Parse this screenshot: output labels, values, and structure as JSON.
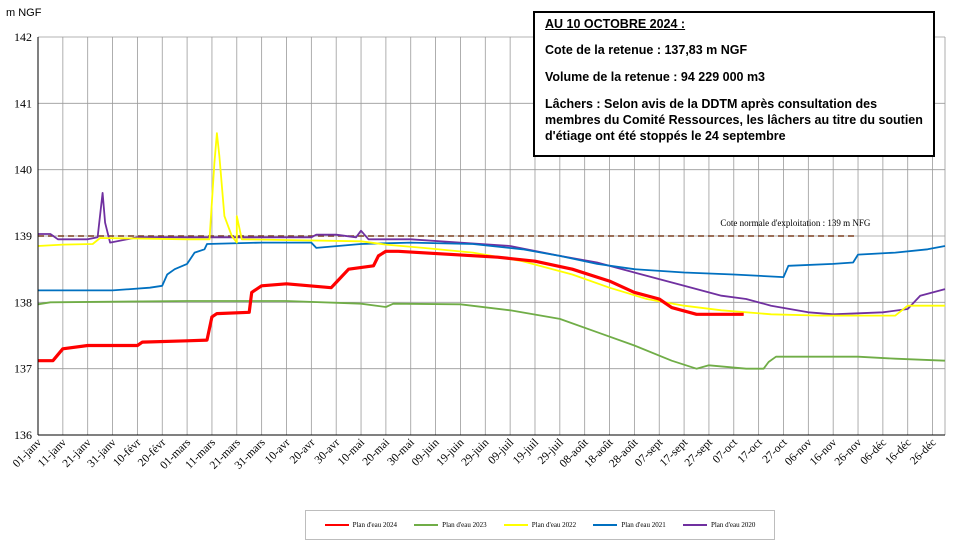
{
  "chart_data": {
    "type": "line",
    "ylabel": "m NGF",
    "ylim": [
      136,
      142
    ],
    "yticks": [
      "136",
      "137",
      "138",
      "139",
      "140",
      "141",
      "142"
    ],
    "xlim": [
      0,
      365
    ],
    "x_tick_labels": [
      "01-janv",
      "11-janv",
      "21-janv",
      "31-janv",
      "10-févr",
      "20-févr",
      "01-mars",
      "11-mars",
      "21-mars",
      "31-mars",
      "10-avr",
      "20-avr",
      "30-avr",
      "10-mai",
      "20-mai",
      "30-mai",
      "09-juin",
      "19-juin",
      "29-juin",
      "09-juil",
      "19-juil",
      "29-juil",
      "08-août",
      "18-août",
      "28-août",
      "07-sept",
      "17-sept",
      "27-sept",
      "07-oct",
      "17-oct",
      "27-oct",
      "06-nov",
      "16-nov",
      "26-nov",
      "06-déc",
      "16-déc",
      "26-déc"
    ],
    "reference_line": {
      "value": 139,
      "label": "Cote normale d'exploitation : 139 m NFG",
      "color": "#7b3f1e"
    },
    "series": [
      {
        "name": "Plan d'eau 2024",
        "color": "#ff0000",
        "points": [
          [
            0,
            137.12
          ],
          [
            6,
            137.12
          ],
          [
            10,
            137.3
          ],
          [
            20,
            137.35
          ],
          [
            40,
            137.35
          ],
          [
            42,
            137.4
          ],
          [
            60,
            137.42
          ],
          [
            68,
            137.43
          ],
          [
            70,
            137.78
          ],
          [
            72,
            137.83
          ],
          [
            85,
            137.85
          ],
          [
            86,
            138.15
          ],
          [
            90,
            138.25
          ],
          [
            100,
            138.28
          ],
          [
            118,
            138.22
          ],
          [
            120,
            138.3
          ],
          [
            125,
            138.5
          ],
          [
            135,
            138.55
          ],
          [
            137,
            138.7
          ],
          [
            140,
            138.77
          ],
          [
            145,
            138.77
          ],
          [
            185,
            138.68
          ],
          [
            200,
            138.62
          ],
          [
            215,
            138.5
          ],
          [
            230,
            138.32
          ],
          [
            240,
            138.15
          ],
          [
            250,
            138.05
          ],
          [
            255,
            137.92
          ],
          [
            265,
            137.82
          ],
          [
            284,
            137.82
          ]
        ]
      },
      {
        "name": "Plan d'eau 2023",
        "color": "#70ad47",
        "points": [
          [
            0,
            137.97
          ],
          [
            5,
            138.0
          ],
          [
            60,
            138.02
          ],
          [
            90,
            138.02
          ],
          [
            100,
            138.02
          ],
          [
            130,
            137.98
          ],
          [
            140,
            137.93
          ],
          [
            143,
            137.98
          ],
          [
            170,
            137.97
          ],
          [
            190,
            137.88
          ],
          [
            210,
            137.75
          ],
          [
            225,
            137.55
          ],
          [
            240,
            137.35
          ],
          [
            255,
            137.12
          ],
          [
            265,
            137.0
          ],
          [
            270,
            137.05
          ],
          [
            285,
            137.0
          ],
          [
            292,
            137.0
          ],
          [
            294,
            137.1
          ],
          [
            297,
            137.18
          ],
          [
            330,
            137.18
          ],
          [
            345,
            137.15
          ],
          [
            365,
            137.12
          ]
        ]
      },
      {
        "name": "Plan d'eau 2022",
        "color": "#ffff00",
        "points": [
          [
            0,
            138.85
          ],
          [
            10,
            138.87
          ],
          [
            22,
            138.88
          ],
          [
            25,
            138.97
          ],
          [
            60,
            138.95
          ],
          [
            69,
            138.95
          ],
          [
            71,
            140.1
          ],
          [
            72,
            140.55
          ],
          [
            73,
            140.2
          ],
          [
            75,
            139.3
          ],
          [
            78,
            139.0
          ],
          [
            80,
            138.9
          ],
          [
            80,
            139.3
          ],
          [
            82,
            138.95
          ],
          [
            130,
            138.92
          ],
          [
            140,
            138.87
          ],
          [
            155,
            138.82
          ],
          [
            175,
            138.75
          ],
          [
            195,
            138.62
          ],
          [
            215,
            138.42
          ],
          [
            230,
            138.22
          ],
          [
            245,
            138.05
          ],
          [
            260,
            137.95
          ],
          [
            275,
            137.88
          ],
          [
            295,
            137.82
          ],
          [
            315,
            137.8
          ],
          [
            345,
            137.8
          ],
          [
            350,
            137.95
          ],
          [
            365,
            137.95
          ]
        ]
      },
      {
        "name": "Plan d'eau 2021",
        "color": "#0070c0",
        "points": [
          [
            0,
            138.18
          ],
          [
            30,
            138.18
          ],
          [
            45,
            138.22
          ],
          [
            50,
            138.25
          ],
          [
            52,
            138.42
          ],
          [
            55,
            138.5
          ],
          [
            60,
            138.58
          ],
          [
            63,
            138.75
          ],
          [
            67,
            138.8
          ],
          [
            68,
            138.88
          ],
          [
            90,
            138.9
          ],
          [
            110,
            138.9
          ],
          [
            112,
            138.82
          ],
          [
            130,
            138.88
          ],
          [
            150,
            138.9
          ],
          [
            175,
            138.88
          ],
          [
            195,
            138.8
          ],
          [
            210,
            138.7
          ],
          [
            225,
            138.58
          ],
          [
            240,
            138.5
          ],
          [
            260,
            138.45
          ],
          [
            280,
            138.42
          ],
          [
            300,
            138.38
          ],
          [
            302,
            138.55
          ],
          [
            320,
            138.58
          ],
          [
            328,
            138.6
          ],
          [
            330,
            138.72
          ],
          [
            345,
            138.75
          ],
          [
            358,
            138.8
          ],
          [
            365,
            138.85
          ]
        ]
      },
      {
        "name": "Plan d'eau 2020",
        "color": "#7030a0",
        "points": [
          [
            0,
            139.03
          ],
          [
            5,
            139.03
          ],
          [
            8,
            138.95
          ],
          [
            20,
            138.95
          ],
          [
            24,
            138.98
          ],
          [
            26,
            139.65
          ],
          [
            27,
            139.2
          ],
          [
            29,
            138.9
          ],
          [
            40,
            138.98
          ],
          [
            60,
            138.98
          ],
          [
            95,
            138.98
          ],
          [
            110,
            138.98
          ],
          [
            112,
            139.02
          ],
          [
            120,
            139.02
          ],
          [
            128,
            138.98
          ],
          [
            130,
            139.08
          ],
          [
            133,
            138.95
          ],
          [
            150,
            138.95
          ],
          [
            170,
            138.9
          ],
          [
            190,
            138.85
          ],
          [
            210,
            138.7
          ],
          [
            225,
            138.6
          ],
          [
            240,
            138.45
          ],
          [
            260,
            138.25
          ],
          [
            275,
            138.1
          ],
          [
            285,
            138.05
          ],
          [
            295,
            137.95
          ],
          [
            310,
            137.85
          ],
          [
            320,
            137.82
          ],
          [
            340,
            137.85
          ],
          [
            350,
            137.9
          ],
          [
            355,
            138.1
          ],
          [
            365,
            138.2
          ]
        ]
      }
    ]
  },
  "infobox": {
    "title": "AU 10 OCTOBRE 2024 :",
    "cote": "Cote de la retenue : 137,83 m NGF",
    "volume": "Volume de la retenue : 94 229 000 m3",
    "lachers": "Lâchers : Selon avis de la DDTM après consultation des membres du Comité Ressources, les lâchers au titre du soutien d'étiage ont été stoppés le 24 septembre"
  }
}
